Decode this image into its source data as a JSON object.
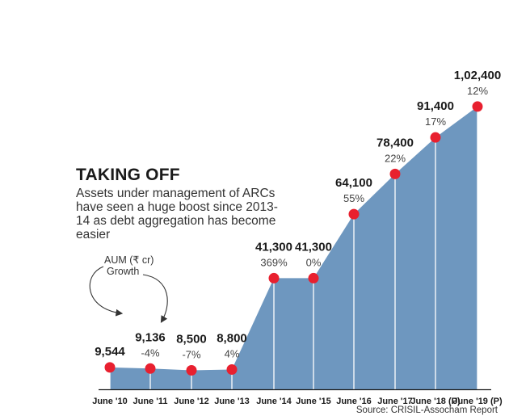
{
  "chart_data": {
    "type": "area",
    "title": "TAKING OFF",
    "subtitle": "Assets under management of ARCs have seen a huge boost since 2013-14 as debt aggregation has become easier",
    "legend": {
      "value_label": "AUM (₹ cr)",
      "growth_label": "Growth"
    },
    "categories": [
      "June '10",
      "June '11",
      "June '12",
      "June '13",
      "June '14",
      "June '15",
      "June '16",
      "June '17",
      "June '18 (P)",
      "June '19 (P)"
    ],
    "values": [
      9544,
      9136,
      8500,
      8800,
      41300,
      41300,
      64100,
      78400,
      91400,
      102400
    ],
    "value_labels": [
      "9,544",
      "9,136",
      "8,500",
      "8,800",
      "41,300",
      "41,300",
      "64,100",
      "78,400",
      "91,400",
      "1,02,400"
    ],
    "growth_labels": [
      "",
      "-4%",
      "-7%",
      "4%",
      "369%",
      "0%",
      "55%",
      "22%",
      "17%",
      "12%"
    ],
    "source": "Source: CRISIL-Assocham Report",
    "colors": {
      "area": "#6e97bf",
      "marker": "#e8202f",
      "line": "#ffffff",
      "text": "#1a1a1a"
    }
  }
}
